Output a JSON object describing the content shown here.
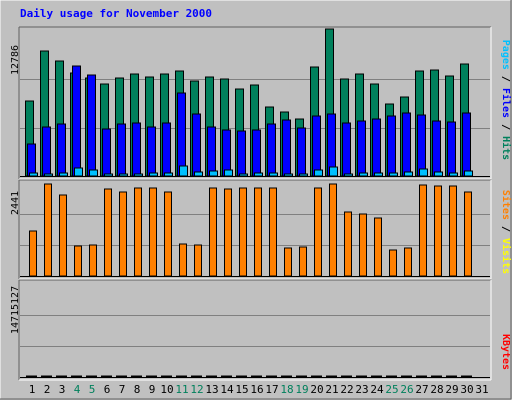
{
  "title": "Daily usage for November 2000",
  "colors": {
    "background": "#c0c0c0",
    "title": "#0000ff",
    "hits": "#00805c",
    "files": "#0000ff",
    "pages": "#00c0ff",
    "visits": "#ffff00",
    "sites": "#ff8000",
    "kbytes": "#ff0000",
    "weekend_label": "#00805c",
    "weekday_label": "#000000"
  },
  "chart_data": [
    {
      "type": "bar",
      "panel": "top",
      "ytick": "12786",
      "legend": [
        "Pages",
        "Files",
        "Hits"
      ],
      "ylim": [
        0,
        12786
      ],
      "categories": [
        "1",
        "2",
        "3",
        "4",
        "5",
        "6",
        "7",
        "8",
        "9",
        "10",
        "11",
        "12",
        "13",
        "14",
        "15",
        "16",
        "17",
        "18",
        "19",
        "20",
        "21",
        "22",
        "23",
        "24",
        "25",
        "26",
        "27",
        "28",
        "29",
        "30",
        "31"
      ],
      "weekend_days": [
        "4",
        "5",
        "11",
        "12",
        "18",
        "19",
        "25",
        "26"
      ],
      "series": [
        {
          "name": "Hits",
          "values": [
            6500,
            10900,
            10000,
            9000,
            8500,
            8000,
            8500,
            8900,
            8600,
            8900,
            9100,
            8300,
            8600,
            8400,
            7600,
            7900,
            6000,
            5600,
            5000,
            9500,
            12800,
            8400,
            8900,
            8000,
            6300,
            6900,
            9100,
            9200,
            8700,
            9700,
            0
          ]
        },
        {
          "name": "Files",
          "values": [
            2800,
            4300,
            4500,
            9600,
            8800,
            4100,
            4500,
            4600,
            4300,
            4600,
            7200,
            5400,
            4300,
            4000,
            3900,
            4000,
            4500,
            4900,
            4200,
            5200,
            5400,
            4600,
            4800,
            5000,
            5200,
            5500,
            5300,
            4800,
            4700,
            5500,
            0
          ]
        },
        {
          "name": "Pages",
          "values": [
            250,
            200,
            250,
            700,
            500,
            150,
            180,
            200,
            250,
            300,
            900,
            350,
            400,
            500,
            200,
            220,
            250,
            180,
            200,
            500,
            800,
            200,
            250,
            250,
            300,
            350,
            600,
            350,
            300,
            400,
            0
          ]
        }
      ]
    },
    {
      "type": "bar",
      "panel": "middle",
      "ytick": "2441",
      "legend": [
        "Sites",
        "Visits"
      ],
      "ylim": [
        0,
        2441
      ],
      "categories": [
        "1",
        "2",
        "3",
        "4",
        "5",
        "6",
        "7",
        "8",
        "9",
        "10",
        "11",
        "12",
        "13",
        "14",
        "15",
        "16",
        "17",
        "18",
        "19",
        "20",
        "21",
        "22",
        "23",
        "24",
        "25",
        "26",
        "27",
        "28",
        "29",
        "30",
        "31"
      ],
      "series": [
        {
          "name": "Visits",
          "values": [
            0,
            0,
            0,
            0,
            0,
            0,
            0,
            0,
            0,
            0,
            0,
            0,
            0,
            0,
            0,
            0,
            0,
            0,
            0,
            0,
            0,
            0,
            0,
            0,
            0,
            0,
            0,
            0,
            0,
            0,
            0
          ]
        },
        {
          "name": "Sites",
          "values": [
            1200,
            2440,
            2150,
            800,
            830,
            2300,
            2220,
            2330,
            2330,
            2220,
            850,
            820,
            2330,
            2300,
            2330,
            2330,
            2330,
            750,
            760,
            2330,
            2430,
            1700,
            1650,
            1530,
            680,
            750,
            2420,
            2380,
            2380,
            2230,
            0
          ]
        }
      ]
    },
    {
      "type": "bar",
      "panel": "bottom",
      "ytick": "14715127",
      "legend": [
        "KBytes"
      ],
      "ylim": [
        0,
        14715127
      ],
      "categories": [
        "1",
        "2",
        "3",
        "4",
        "5",
        "6",
        "7",
        "8",
        "9",
        "10",
        "11",
        "12",
        "13",
        "14",
        "15",
        "16",
        "17",
        "18",
        "19",
        "20",
        "21",
        "22",
        "23",
        "24",
        "25",
        "26",
        "27",
        "28",
        "29",
        "30",
        "31"
      ],
      "series": [
        {
          "name": "KBytes",
          "values": [
            7800,
            12500,
            12800,
            13300,
            12800,
            12100,
            11800,
            12400,
            12000,
            12500,
            13700,
            13600,
            12400,
            12500,
            11800,
            12000,
            12200,
            12900,
            10100,
            12100,
            12100,
            12800,
            12600,
            12600,
            10300,
            7500,
            12100,
            12100,
            12600,
            12600,
            0
          ]
        }
      ]
    }
  ]
}
